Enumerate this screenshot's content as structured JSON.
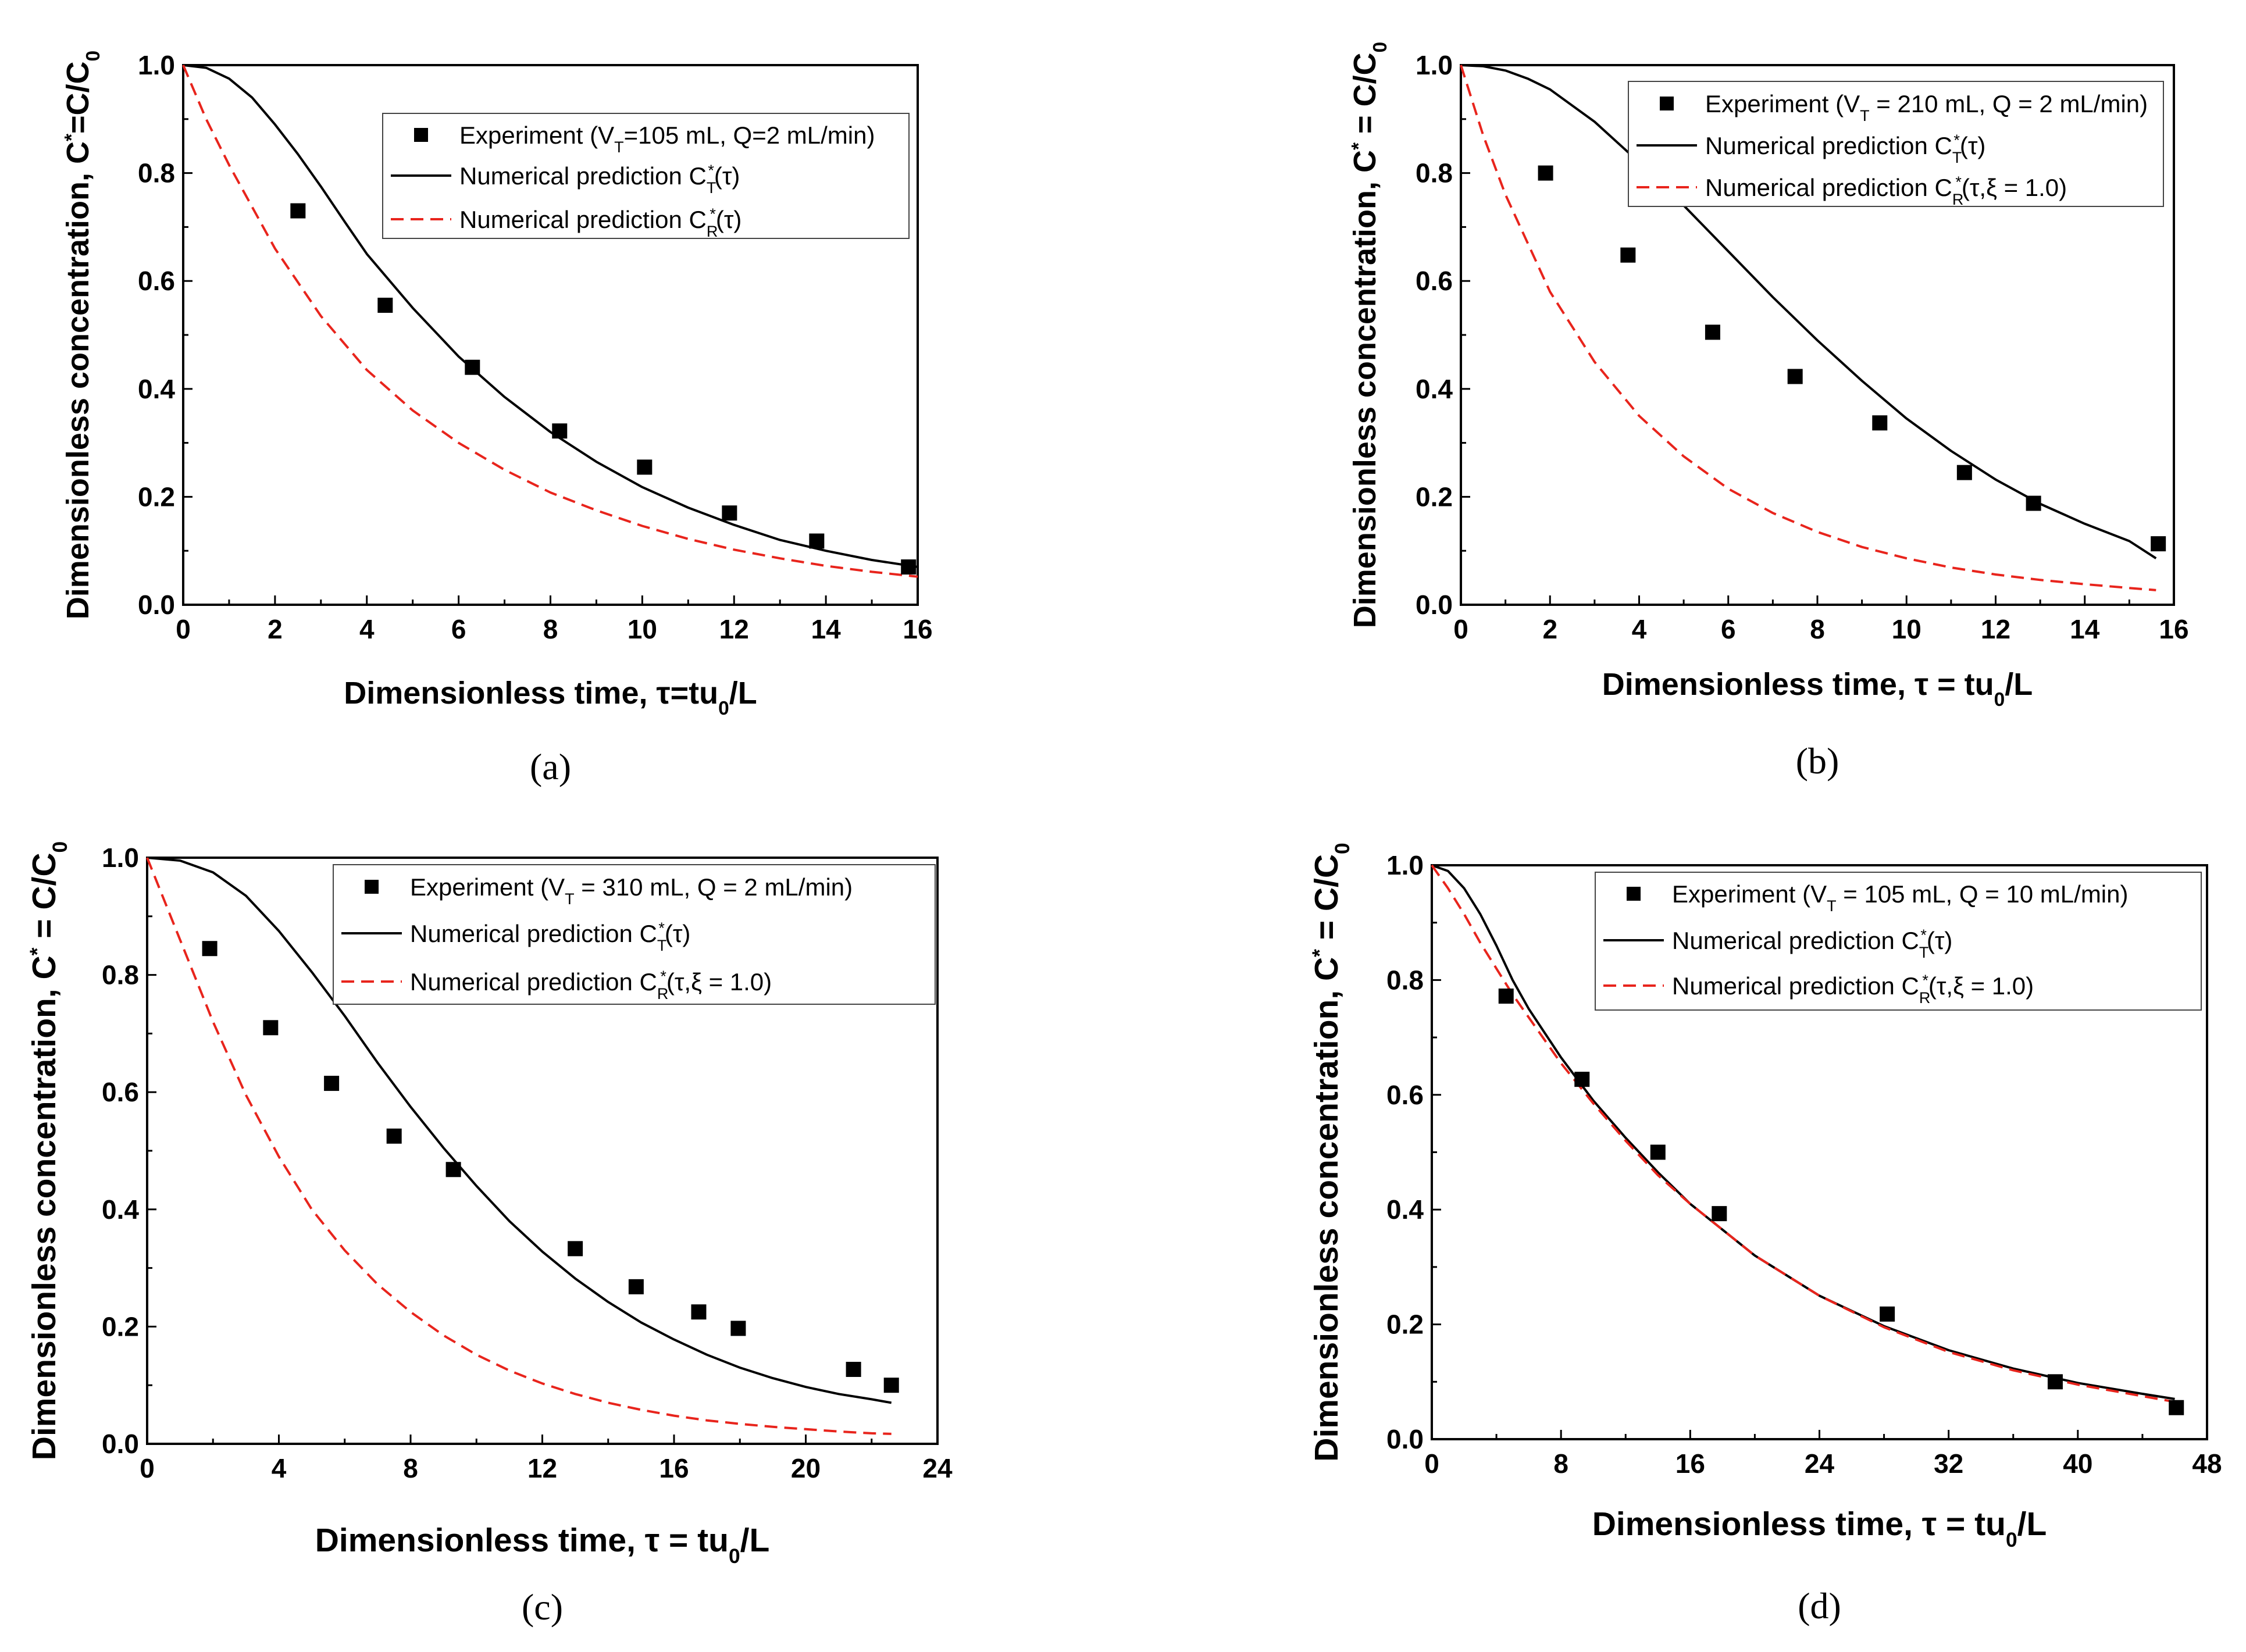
{
  "figure": {
    "colors": {
      "axis": "#000000",
      "measured": "#000000",
      "model_t": "#000000",
      "model_r": "#e8241c"
    }
  },
  "chart_data": [
    {
      "panel": "a",
      "panel_label": "(a)",
      "type": "scatter+line",
      "xlim": [
        0,
        16
      ],
      "ylim": [
        0,
        1.0
      ],
      "xticks": [
        0,
        2,
        4,
        6,
        8,
        10,
        12,
        14,
        16
      ],
      "yticks": [
        0.0,
        0.2,
        0.4,
        0.6,
        0.8,
        1.0
      ],
      "xtick_labels": [
        "0",
        "2",
        "4",
        "6",
        "8",
        "10",
        "12",
        "14",
        "16"
      ],
      "ytick_labels": [
        "0.0",
        "0.2",
        "0.4",
        "0.6",
        "0.8",
        "1.0"
      ],
      "xlabel": {
        "main": "Dimensionless time, τ=tu",
        "sub": "0",
        "tail": "/L"
      },
      "ylabel": {
        "main": "Dimensionless concentration, C",
        "sup": "*",
        "mid": "=C/C",
        "sub": "0"
      },
      "legend": [
        {
          "kind": "marker",
          "main": "Experiment (V",
          "sub": "T",
          "tail": "=105 mL, Q=2 mL/min)"
        },
        {
          "kind": "solid",
          "main": "Numerical prediction C",
          "sub": "T",
          "sup": "*",
          "tail": "(τ)"
        },
        {
          "kind": "dashed",
          "main": "Numerical prediction C",
          "sub": "R",
          "sup": "*",
          "tail": "(τ)"
        }
      ],
      "experiment": {
        "x": [
          2.5,
          4.4,
          6.3,
          8.2,
          10.05,
          11.9,
          13.8,
          15.8
        ],
        "y": [
          0.73,
          0.555,
          0.44,
          0.322,
          0.255,
          0.17,
          0.118,
          0.07
        ]
      },
      "prediction_T": {
        "x": [
          0,
          0.5,
          1,
          1.5,
          2,
          2.5,
          3,
          3.5,
          4,
          5,
          6,
          7,
          8,
          9,
          10,
          11,
          12,
          13,
          14,
          15,
          16
        ],
        "y": [
          1.0,
          0.995,
          0.975,
          0.94,
          0.89,
          0.835,
          0.775,
          0.712,
          0.65,
          0.55,
          0.46,
          0.385,
          0.32,
          0.265,
          0.218,
          0.18,
          0.148,
          0.12,
          0.1,
          0.083,
          0.07
        ]
      },
      "prediction_R": {
        "x": [
          0,
          0.5,
          1,
          2,
          3,
          4,
          5,
          6,
          7,
          8,
          9,
          10,
          11,
          12,
          13,
          14,
          15,
          16
        ],
        "y": [
          1.0,
          0.9,
          0.815,
          0.66,
          0.535,
          0.435,
          0.36,
          0.3,
          0.25,
          0.208,
          0.175,
          0.146,
          0.122,
          0.102,
          0.086,
          0.072,
          0.061,
          0.052
        ]
      }
    },
    {
      "panel": "b",
      "panel_label": "(b)",
      "type": "scatter+line",
      "xlim": [
        0,
        16
      ],
      "ylim": [
        0,
        1.0
      ],
      "xticks": [
        0,
        2,
        4,
        6,
        8,
        10,
        12,
        14,
        16
      ],
      "yticks": [
        0.0,
        0.2,
        0.4,
        0.6,
        0.8,
        1.0
      ],
      "xtick_labels": [
        "0",
        "2",
        "4",
        "6",
        "8",
        "10",
        "12",
        "14",
        "16"
      ],
      "ytick_labels": [
        "0.0",
        "0.2",
        "0.4",
        "0.6",
        "0.8",
        "1.0"
      ],
      "xlabel": {
        "main": "Dimensionless time, τ = tu",
        "sub": "0",
        "tail": "/L"
      },
      "ylabel": {
        "main": "Dimensionless concentration, C",
        "sup": "*",
        "mid": " = C/C",
        "sub": "0"
      },
      "legend": [
        {
          "kind": "marker",
          "main": "Experiment (V",
          "sub": "T",
          "tail": " = 210 mL, Q = 2 mL/min)"
        },
        {
          "kind": "solid",
          "main": "Numerical prediction C",
          "sub": "T",
          "sup": "*",
          "tail": "(τ)"
        },
        {
          "kind": "dashed",
          "main": "Numerical prediction C",
          "sub": "R",
          "sup": "*",
          "tail": "(τ,ξ = 1.0)"
        }
      ],
      "experiment": {
        "x": [
          1.9,
          3.75,
          5.65,
          7.5,
          9.4,
          11.3,
          12.85,
          15.65
        ],
        "y": [
          0.8,
          0.648,
          0.505,
          0.423,
          0.337,
          0.245,
          0.188,
          0.113
        ]
      },
      "prediction_T": {
        "x": [
          0,
          0.5,
          1,
          1.5,
          2,
          3,
          4,
          5,
          6,
          7,
          8,
          9,
          10,
          11,
          12,
          13,
          14,
          15,
          15.6
        ],
        "y": [
          1.0,
          0.998,
          0.99,
          0.975,
          0.955,
          0.895,
          0.82,
          0.74,
          0.655,
          0.57,
          0.49,
          0.415,
          0.345,
          0.285,
          0.232,
          0.187,
          0.15,
          0.118,
          0.086
        ]
      },
      "prediction_R": {
        "x": [
          0,
          0.5,
          1,
          2,
          3,
          4,
          5,
          6,
          7,
          8,
          9,
          10,
          11,
          12,
          13,
          14,
          15,
          15.6
        ],
        "y": [
          1.0,
          0.87,
          0.76,
          0.58,
          0.45,
          0.35,
          0.275,
          0.215,
          0.17,
          0.135,
          0.107,
          0.086,
          0.069,
          0.056,
          0.046,
          0.038,
          0.031,
          0.027
        ]
      }
    },
    {
      "panel": "c",
      "panel_label": "(c)",
      "type": "scatter+line",
      "xlim": [
        0,
        24
      ],
      "ylim": [
        0,
        1.0
      ],
      "xticks": [
        0,
        4,
        8,
        12,
        16,
        20,
        24
      ],
      "yticks": [
        0.0,
        0.2,
        0.4,
        0.6,
        0.8,
        1.0
      ],
      "xtick_labels": [
        "0",
        "4",
        "8",
        "12",
        "16",
        "20",
        "24"
      ],
      "ytick_labels": [
        "0.0",
        "0.2",
        "0.4",
        "0.6",
        "0.8",
        "1.0"
      ],
      "xlabel": {
        "main": "Dimensionless time, τ = tu",
        "sub": "0",
        "tail": "/L"
      },
      "ylabel": {
        "main": "Dimensionless concentration, C",
        "sup": "*",
        "mid": " = C/C",
        "sub": "0"
      },
      "legend": [
        {
          "kind": "marker",
          "main": "Experiment (V",
          "sub": "T",
          "tail": " = 310 mL, Q = 2 mL/min)"
        },
        {
          "kind": "solid",
          "main": "Numerical prediction C",
          "sub": "T",
          "sup": "*",
          "tail": "(τ)"
        },
        {
          "kind": "dashed",
          "main": "Numerical prediction C",
          "sub": "R",
          "sup": "*",
          "tail": "(τ,ξ = 1.0)"
        }
      ],
      "experiment": {
        "x": [
          1.9,
          3.75,
          5.6,
          7.5,
          9.3,
          13.0,
          14.85,
          16.75,
          17.95,
          21.45,
          22.6
        ],
        "y": [
          0.845,
          0.71,
          0.615,
          0.525,
          0.468,
          0.333,
          0.268,
          0.225,
          0.197,
          0.127,
          0.1
        ]
      },
      "prediction_T": {
        "x": [
          0,
          1,
          2,
          3,
          4,
          5,
          6,
          7,
          8,
          9,
          10,
          11,
          12,
          13,
          14,
          15,
          16,
          17,
          18,
          19,
          20,
          21,
          22,
          22.6
        ],
        "y": [
          1.0,
          0.995,
          0.975,
          0.935,
          0.875,
          0.805,
          0.73,
          0.65,
          0.575,
          0.505,
          0.44,
          0.38,
          0.328,
          0.282,
          0.242,
          0.207,
          0.178,
          0.152,
          0.13,
          0.112,
          0.097,
          0.085,
          0.076,
          0.07
        ]
      },
      "prediction_R": {
        "x": [
          0,
          1,
          2,
          3,
          4,
          5,
          6,
          7,
          8,
          9,
          10,
          11,
          12,
          13,
          14,
          15,
          16,
          17,
          18,
          19,
          20,
          21,
          22,
          22.6
        ],
        "y": [
          1.0,
          0.86,
          0.72,
          0.595,
          0.49,
          0.4,
          0.33,
          0.272,
          0.225,
          0.185,
          0.152,
          0.125,
          0.103,
          0.085,
          0.07,
          0.058,
          0.048,
          0.04,
          0.034,
          0.029,
          0.025,
          0.021,
          0.018,
          0.017
        ]
      }
    },
    {
      "panel": "d",
      "panel_label": "(d)",
      "type": "scatter+line",
      "xlim": [
        0,
        48
      ],
      "ylim": [
        0,
        1.0
      ],
      "xticks": [
        0,
        8,
        16,
        24,
        32,
        40,
        48
      ],
      "yticks": [
        0.0,
        0.2,
        0.4,
        0.6,
        0.8,
        1.0
      ],
      "xtick_labels": [
        "0",
        "8",
        "16",
        "24",
        "32",
        "40",
        "48"
      ],
      "ytick_labels": [
        "0.0",
        "0.2",
        "0.4",
        "0.6",
        "0.8",
        "1.0"
      ],
      "xlabel": {
        "main": "Dimensionless time, τ = tu",
        "sub": "0",
        "tail": "/L"
      },
      "ylabel": {
        "main": "Dimensionless concentration, C",
        "sup": "*",
        "mid": " = C/C",
        "sub": "0"
      },
      "legend": [
        {
          "kind": "marker",
          "main": "Experiment (V",
          "sub": "T",
          "tail": " = 105 mL, Q = 10 mL/min)"
        },
        {
          "kind": "solid",
          "main": "Numerical prediction C",
          "sub": "T",
          "sup": "*",
          "tail": "(τ)"
        },
        {
          "kind": "dashed",
          "main": "Numerical prediction C",
          "sub": "R",
          "sup": "*",
          "tail": "(τ,ξ = 1.0)"
        }
      ],
      "experiment": {
        "x": [
          4.6,
          9.3,
          14.0,
          17.8,
          28.2,
          38.6,
          46.1
        ],
        "y": [
          0.772,
          0.627,
          0.5,
          0.393,
          0.218,
          0.1,
          0.055
        ]
      },
      "prediction_T": {
        "x": [
          0,
          1,
          2,
          3,
          4,
          5,
          6,
          8,
          10,
          12,
          14,
          16,
          20,
          24,
          28,
          32,
          36,
          40,
          44,
          46
        ],
        "y": [
          1.0,
          0.99,
          0.96,
          0.915,
          0.86,
          0.8,
          0.75,
          0.665,
          0.59,
          0.525,
          0.465,
          0.41,
          0.32,
          0.25,
          0.197,
          0.155,
          0.123,
          0.098,
          0.079,
          0.07
        ]
      },
      "prediction_R": {
        "x": [
          0,
          1,
          2,
          3,
          4,
          5,
          6,
          8,
          10,
          12,
          14,
          16,
          20,
          24,
          28,
          32,
          36,
          40,
          44,
          46
        ],
        "y": [
          1.0,
          0.96,
          0.915,
          0.865,
          0.82,
          0.775,
          0.735,
          0.655,
          0.585,
          0.52,
          0.46,
          0.41,
          0.32,
          0.25,
          0.195,
          0.152,
          0.12,
          0.095,
          0.075,
          0.065
        ]
      }
    }
  ]
}
